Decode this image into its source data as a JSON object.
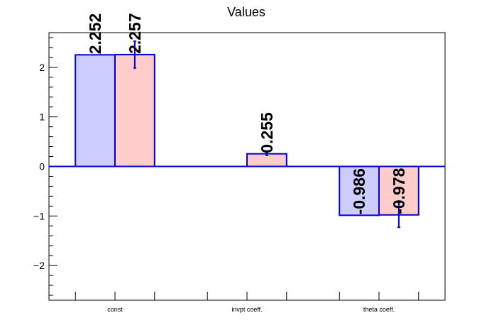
{
  "chart_data": {
    "type": "bar",
    "title": "Values",
    "xlabel": "",
    "ylabel": "",
    "categories": [
      "const",
      "invpt coeff.",
      "theta coeff."
    ],
    "ylim": [
      -2.7,
      2.7
    ],
    "y_ticks": [
      -2,
      -1,
      0,
      1,
      2
    ],
    "y_tick_labels": [
      "−2",
      "−1",
      "0",
      "1",
      "2"
    ],
    "grid": false,
    "legend": "none",
    "series": [
      {
        "values": [
          2.252,
          null,
          -0.986
        ],
        "labels": [
          "2.252",
          "",
          "-0.986"
        ],
        "errors": [
          null,
          null,
          null
        ],
        "fill": "#ccccff",
        "stroke": "#0000dd"
      },
      {
        "values": [
          2.257,
          0.255,
          -0.978
        ],
        "labels": [
          "2.257",
          "0.255",
          "-0.978"
        ],
        "errors": [
          0.27,
          0.03,
          0.25
        ],
        "fill": "#ffcccc",
        "stroke": "#0000dd"
      }
    ]
  }
}
